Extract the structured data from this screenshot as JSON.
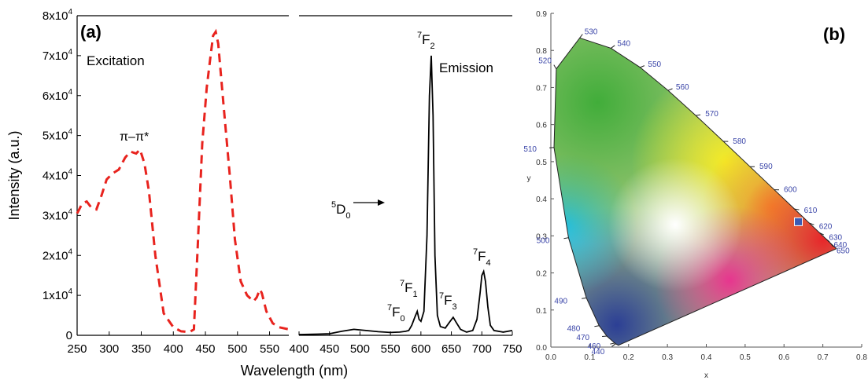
{
  "chart_data": [
    {
      "panel": "(a)",
      "type": "line",
      "xlabel": "Wavelength (nm)",
      "ylabel": "Intensity (a.u.)",
      "y_ticks": [
        "0",
        "1x10^4",
        "2x10^4",
        "3x10^4",
        "4x10^4",
        "5x10^4",
        "6x10^4",
        "7x10^4",
        "8x10^4"
      ],
      "ylim": [
        0,
        80000
      ],
      "subplots": [
        {
          "name": "Excitation",
          "color": "#e8231e",
          "style": "dashed",
          "xlim": [
            250,
            580
          ],
          "x_ticks": [
            "250",
            "300",
            "350",
            "400",
            "450",
            "500",
            "550"
          ],
          "annotations": [
            "Excitation",
            "π–π*"
          ],
          "points": [
            [
              250,
              30500
            ],
            [
              258,
              33000
            ],
            [
              265,
              33500
            ],
            [
              272,
              32000
            ],
            [
              280,
              31500
            ],
            [
              288,
              35000
            ],
            [
              296,
              39000
            ],
            [
              305,
              40500
            ],
            [
              315,
              41500
            ],
            [
              325,
              44500
            ],
            [
              333,
              46000
            ],
            [
              342,
              45500
            ],
            [
              348,
              46500
            ],
            [
              355,
              43000
            ],
            [
              362,
              36000
            ],
            [
              372,
              20000
            ],
            [
              385,
              5500
            ],
            [
              400,
              2000
            ],
            [
              412,
              1000
            ],
            [
              425,
              800
            ],
            [
              432,
              1500
            ],
            [
              438,
              22000
            ],
            [
              445,
              48000
            ],
            [
              452,
              62000
            ],
            [
              458,
              70000
            ],
            [
              462,
              75000
            ],
            [
              466,
              76000
            ],
            [
              470,
              73000
            ],
            [
              478,
              58000
            ],
            [
              488,
              40000
            ],
            [
              496,
              24000
            ],
            [
              505,
              13500
            ],
            [
              515,
              10000
            ],
            [
              525,
              8500
            ],
            [
              530,
              9500
            ],
            [
              535,
              11500
            ],
            [
              538,
              10500
            ],
            [
              545,
              6000
            ],
            [
              555,
              3000
            ],
            [
              565,
              2000
            ],
            [
              580,
              1500
            ]
          ]
        },
        {
          "name": "Emission",
          "color": "#000000",
          "style": "solid",
          "xlim": [
            400,
            750
          ],
          "x_ticks": [
            "400",
            "450",
            "500",
            "550",
            "600",
            "650",
            "700",
            "750"
          ],
          "annotations": [
            "Emission"
          ],
          "transitions": [
            {
              "upper": "5",
              "main": "D",
              "lower": "0",
              "label": "5D0 →"
            },
            {
              "upper": "7",
              "main": "F",
              "lower": "0",
              "label": "7F0"
            },
            {
              "upper": "7",
              "main": "F",
              "lower": "1",
              "label": "7F1"
            },
            {
              "upper": "7",
              "main": "F",
              "lower": "2",
              "label": "7F2"
            },
            {
              "upper": "7",
              "main": "F",
              "lower": "3",
              "label": "7F3"
            },
            {
              "upper": "7",
              "main": "F",
              "lower": "4",
              "label": "7F4"
            }
          ],
          "points": [
            [
              400,
              200
            ],
            [
              430,
              300
            ],
            [
              450,
              400
            ],
            [
              470,
              1000
            ],
            [
              490,
              1500
            ],
            [
              510,
              1200
            ],
            [
              530,
              900
            ],
            [
              550,
              700
            ],
            [
              565,
              800
            ],
            [
              575,
              1000
            ],
            [
              580,
              1200
            ],
            [
              585,
              2500
            ],
            [
              590,
              4500
            ],
            [
              594,
              6000
            ],
            [
              597,
              4000
            ],
            [
              600,
              3500
            ],
            [
              605,
              6000
            ],
            [
              610,
              25000
            ],
            [
              614,
              60000
            ],
            [
              617,
              70000
            ],
            [
              620,
              55000
            ],
            [
              623,
              20000
            ],
            [
              627,
              5000
            ],
            [
              632,
              2200
            ],
            [
              640,
              1800
            ],
            [
              648,
              3500
            ],
            [
              653,
              4500
            ],
            [
              658,
              3200
            ],
            [
              665,
              1500
            ],
            [
              675,
              800
            ],
            [
              685,
              1200
            ],
            [
              692,
              4000
            ],
            [
              697,
              10500
            ],
            [
              700,
              15000
            ],
            [
              703,
              16000
            ],
            [
              706,
              13500
            ],
            [
              710,
              7000
            ],
            [
              714,
              2500
            ],
            [
              720,
              1200
            ],
            [
              735,
              800
            ],
            [
              750,
              1200
            ]
          ]
        }
      ]
    },
    {
      "panel": "(b)",
      "type": "scatter",
      "title": "",
      "xlabel": "x",
      "ylabel": "y",
      "xlim": [
        0.0,
        0.8
      ],
      "ylim": [
        0.0,
        0.9
      ],
      "x_ticks": [
        "0.0",
        "0.1",
        "0.2",
        "0.3",
        "0.4",
        "0.5",
        "0.6",
        "0.7",
        "0.8"
      ],
      "y_ticks": [
        "0.0",
        "0.1",
        "0.2",
        "0.3",
        "0.4",
        "0.5",
        "0.6",
        "0.7",
        "0.8",
        "0.9"
      ],
      "locus_wavelengths": [
        "440",
        "460",
        "470",
        "480",
        "490",
        "500",
        "510",
        "520",
        "530",
        "540",
        "550",
        "560",
        "570",
        "580",
        "590",
        "600",
        "610",
        "620",
        "630",
        "640",
        "650"
      ],
      "locus": [
        [
          0.1738,
          0.0049
        ],
        [
          0.1666,
          0.0089
        ],
        [
          0.1644,
          0.0109
        ],
        [
          0.144,
          0.0297
        ],
        [
          0.1241,
          0.0578
        ],
        [
          0.0913,
          0.1327
        ],
        [
          0.0454,
          0.295
        ],
        [
          0.0082,
          0.5384
        ],
        [
          0.0139,
          0.7502
        ],
        [
          0.0743,
          0.8338
        ],
        [
          0.1547,
          0.8059
        ],
        [
          0.2296,
          0.7543
        ],
        [
          0.3016,
          0.6923
        ],
        [
          0.3731,
          0.6245
        ],
        [
          0.4441,
          0.5547
        ],
        [
          0.5125,
          0.4866
        ],
        [
          0.5752,
          0.4242
        ],
        [
          0.627,
          0.3725
        ],
        [
          0.6658,
          0.334
        ],
        [
          0.6915,
          0.3083
        ],
        [
          0.7079,
          0.292
        ],
        [
          0.719,
          0.2809
        ],
        [
          0.726,
          0.274
        ],
        [
          0.7347,
          0.2653
        ]
      ],
      "point": {
        "x": 0.637,
        "y": 0.338,
        "color": "#3a5bb5"
      }
    }
  ]
}
